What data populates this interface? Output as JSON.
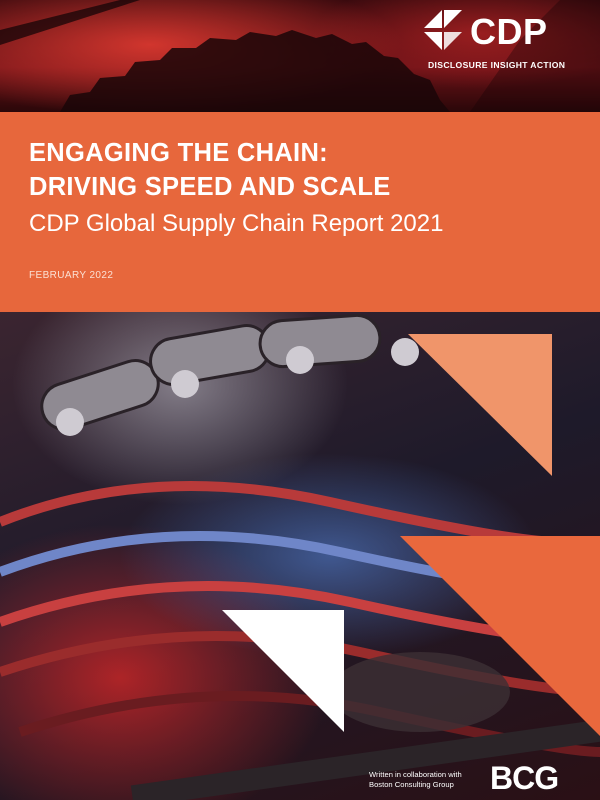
{
  "brand": {
    "logo_text": "CDP",
    "tagline": "DISCLOSURE INSIGHT ACTION"
  },
  "cover": {
    "title_line1": "ENGAGING THE CHAIN:",
    "title_line2": "DRIVING SPEED AND SCALE",
    "subtitle": "CDP Global Supply Chain Report 2021",
    "date": "FEBRUARY 2022"
  },
  "footer": {
    "collab_line1": "Written in collaboration with",
    "collab_line2": "Boston Consulting Group",
    "partner_logo_text": "BCG"
  },
  "colors": {
    "band_orange": "#e7673c",
    "triangle_light": "#f0956a",
    "triangle_orange": "#e9683d",
    "triangle_white": "#ffffff"
  },
  "images": {
    "top": "bicycle-sprocket-red-lit-photo",
    "bottom": "bicycle-chain-cassette-photo"
  }
}
